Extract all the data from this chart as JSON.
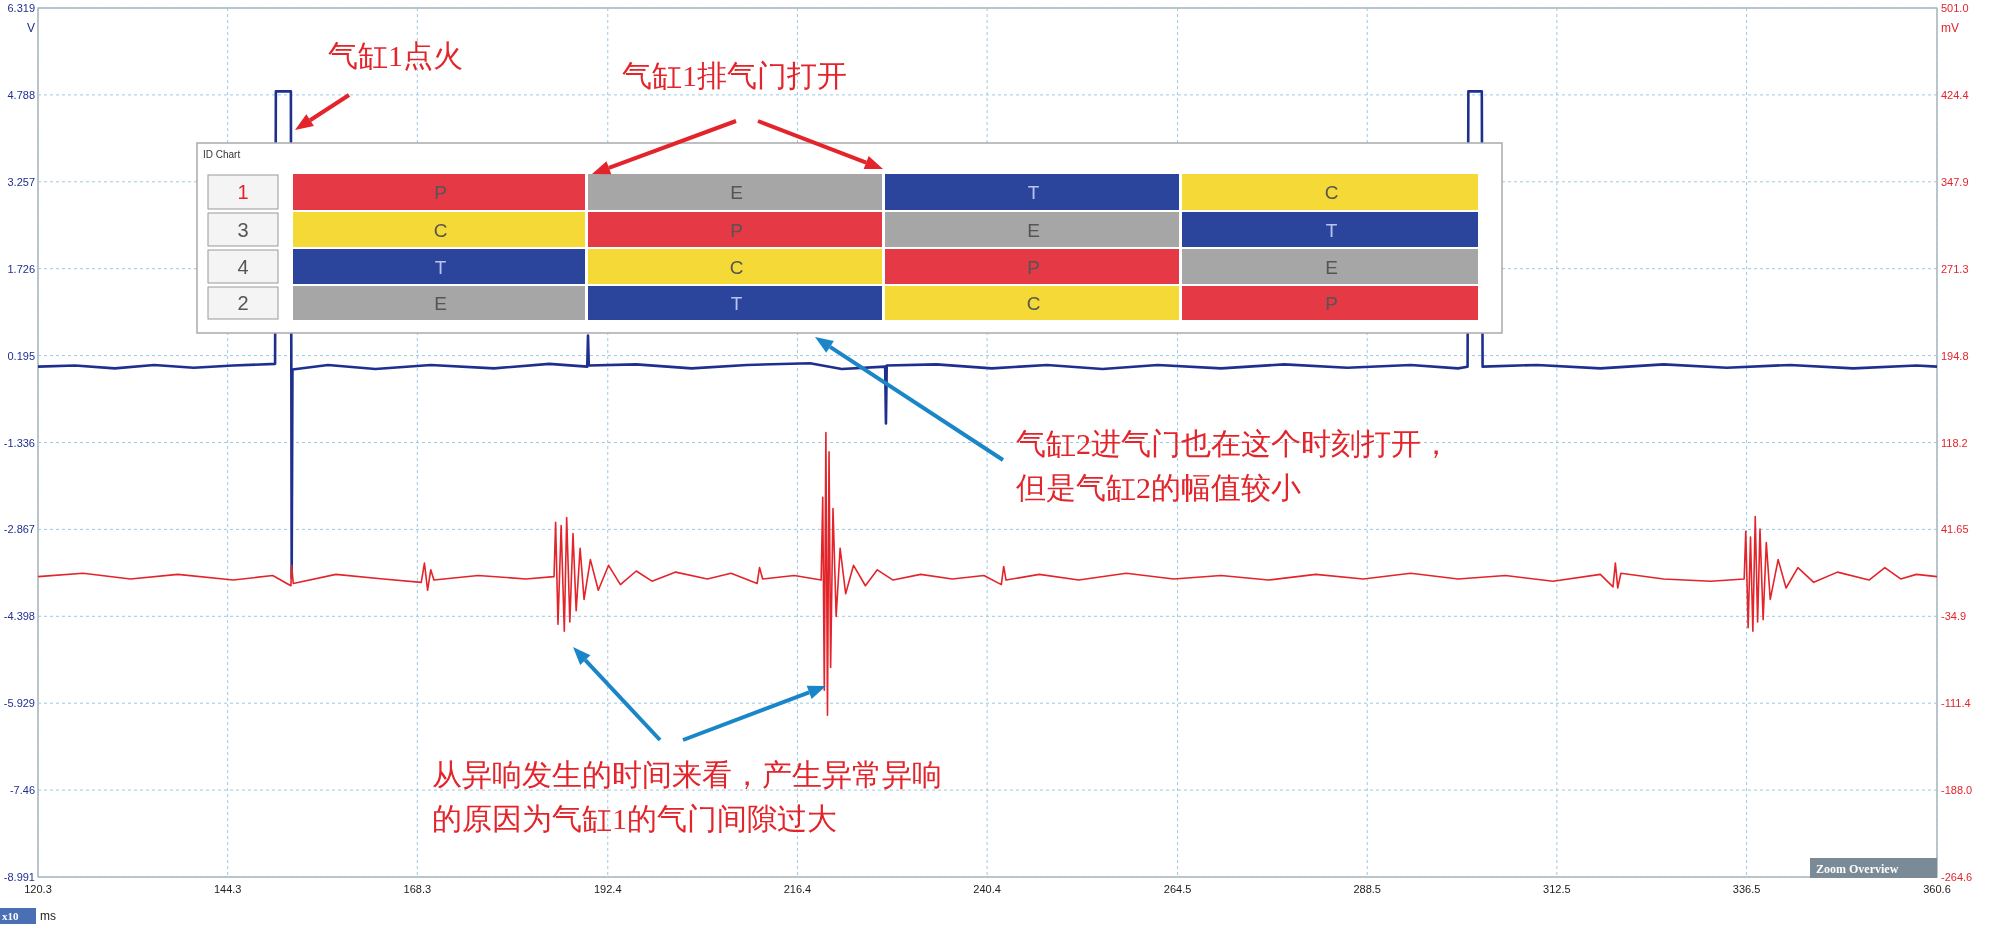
{
  "chart_data": [
    {
      "type": "line",
      "xlabel": "ms",
      "ylabel": "V",
      "y2label": "mV",
      "xlim": [
        120.3,
        360.6
      ],
      "xticks": [
        120.3,
        144.3,
        168.3,
        192.4,
        216.4,
        240.4,
        264.5,
        288.5,
        312.5,
        336.5,
        360.6
      ],
      "ylim": [
        -8.991,
        6.319
      ],
      "yticks": [
        6.319,
        4.788,
        3.257,
        1.726,
        0.195,
        -1.336,
        -2.867,
        -4.398,
        -5.929,
        -7.46,
        -8.991
      ],
      "y2lim": [
        -264.6,
        501.0
      ],
      "y2ticks": [
        {
          "value": 501.0,
          "label": "501.0"
        },
        424.4,
        347.9,
        271.3,
        194.8,
        118.2,
        41.65,
        -34.9,
        -111.4,
        {
          "value": -188.0,
          "label": "-188.0"
        },
        -264.6
      ],
      "grid": true,
      "series": [
        {
          "color": "#1f2f8f",
          "x": [
            120.3,
            125,
            130,
            135,
            140,
            145,
            150.3,
            150.4,
            152.3,
            152.4,
            152.5,
            157,
            163,
            170,
            178,
            185,
            189.8,
            189.9,
            190.0,
            196,
            203,
            210,
            218,
            222,
            227.5,
            227.6,
            227.7,
            234,
            241,
            248,
            255,
            262,
            270,
            278,
            286,
            294,
            300,
            301.2,
            301.3,
            303.0,
            303.1,
            310,
            318,
            326,
            334,
            342,
            350,
            358,
            360.6
          ],
          "values": [
            0.0,
            0.02,
            -0.03,
            0.03,
            -0.02,
            0.02,
            0.05,
            4.85,
            4.85,
            -3.72,
            -0.05,
            0.03,
            -0.04,
            0.03,
            -0.03,
            0.05,
            0.0,
            0.55,
            0.02,
            0.04,
            -0.03,
            0.03,
            0.06,
            -0.04,
            0.0,
            -1.0,
            0.02,
            0.04,
            -0.03,
            0.03,
            -0.04,
            0.03,
            -0.03,
            0.04,
            -0.02,
            0.03,
            -0.03,
            0.0,
            4.85,
            4.85,
            0.0,
            0.03,
            -0.03,
            0.04,
            -0.02,
            0.03,
            -0.03,
            0.02,
            0.0
          ]
        },
        {
          "color": "#e3242b",
          "axis": "y2",
          "x": [
            120.3,
            126,
            132,
            138,
            145,
            150,
            152.3,
            152.4,
            152.6,
            158,
            164,
            168.8,
            169.2,
            169.6,
            170.0,
            170.4,
            176,
            182,
            185.6,
            185.8,
            186.1,
            186.5,
            186.9,
            187.2,
            187.6,
            188.0,
            188.4,
            188.9,
            189.4,
            190.2,
            191.2,
            192.5,
            194,
            196,
            198,
            201,
            205,
            208,
            211.3,
            211.6,
            212,
            216,
            219.4,
            219.6,
            219.8,
            220.0,
            220.2,
            220.4,
            220.6,
            220.9,
            221.3,
            221.8,
            222.5,
            223.5,
            225,
            226.5,
            228.5,
            232,
            236,
            240,
            242.2,
            242.5,
            242.8,
            247,
            252,
            258,
            264,
            270,
            276,
            282,
            288,
            294,
            300,
            306,
            312,
            318,
            319.6,
            319.9,
            320.2,
            320.6,
            326,
            332,
            336.2,
            336.4,
            336.7,
            337.0,
            337.3,
            337.6,
            337.9,
            338.2,
            338.6,
            339.0,
            339.5,
            340.5,
            341.5,
            343,
            345,
            348,
            352,
            354,
            356,
            358,
            360.6
          ],
          "values": [
            0,
            3,
            -2,
            2,
            -3,
            1,
            -8,
            10,
            -6,
            2,
            -2,
            -5,
            12,
            -12,
            6,
            -3,
            1,
            -2,
            0,
            48,
            -42,
            45,
            -48,
            52,
            -40,
            38,
            -30,
            25,
            -20,
            15,
            -12,
            10,
            -7,
            5,
            -4,
            4,
            -2,
            3,
            -6,
            8,
            -2,
            1,
            -3,
            70,
            -100,
            127,
            -122,
            110,
            -80,
            60,
            -35,
            25,
            -15,
            10,
            -8,
            6,
            -3,
            2,
            -2,
            1,
            -7,
            9,
            -3,
            2,
            -3,
            3,
            -2,
            1,
            -3,
            2,
            -2,
            3,
            -2,
            1,
            -4,
            2,
            -9,
            12,
            -10,
            3,
            -2,
            -4,
            -2,
            40,
            -45,
            35,
            -48,
            53,
            -40,
            42,
            -38,
            30,
            -20,
            15,
            -10,
            8,
            -5,
            4,
            -3,
            8,
            -2,
            2,
            0
          ]
        }
      ],
      "annotations": [
        "气缸1点火",
        "气缸1排气门打开",
        "气缸2进气门也在这个时刻打开，",
        "但是气缸2的幅值较小",
        "从异响发生的时间来看，产生异常异响",
        "的原因为气缸1的气门间隙过大",
        "x10",
        "Zoom Overview"
      ]
    },
    {
      "type": "other",
      "title": "ID Chart",
      "y_categories": [
        "1",
        "3",
        "4",
        "2"
      ],
      "cell_labels": [
        [
          "P",
          "E",
          "T",
          "C"
        ],
        [
          "C",
          "P",
          "E",
          "T"
        ],
        [
          "T",
          "C",
          "P",
          "E"
        ],
        [
          "E",
          "T",
          "C",
          "P"
        ]
      ],
      "colors": [
        [
          "#e63946",
          "#a6a6a6",
          "#2b449c",
          "#f5d937"
        ],
        [
          "#f5d937",
          "#e63946",
          "#a6a6a6",
          "#2b449c"
        ],
        [
          "#2b449c",
          "#f5d937",
          "#e63946",
          "#a6a6a6"
        ],
        [
          "#a6a6a6",
          "#2b449c",
          "#f5d937",
          "#e63946"
        ]
      ]
    }
  ]
}
